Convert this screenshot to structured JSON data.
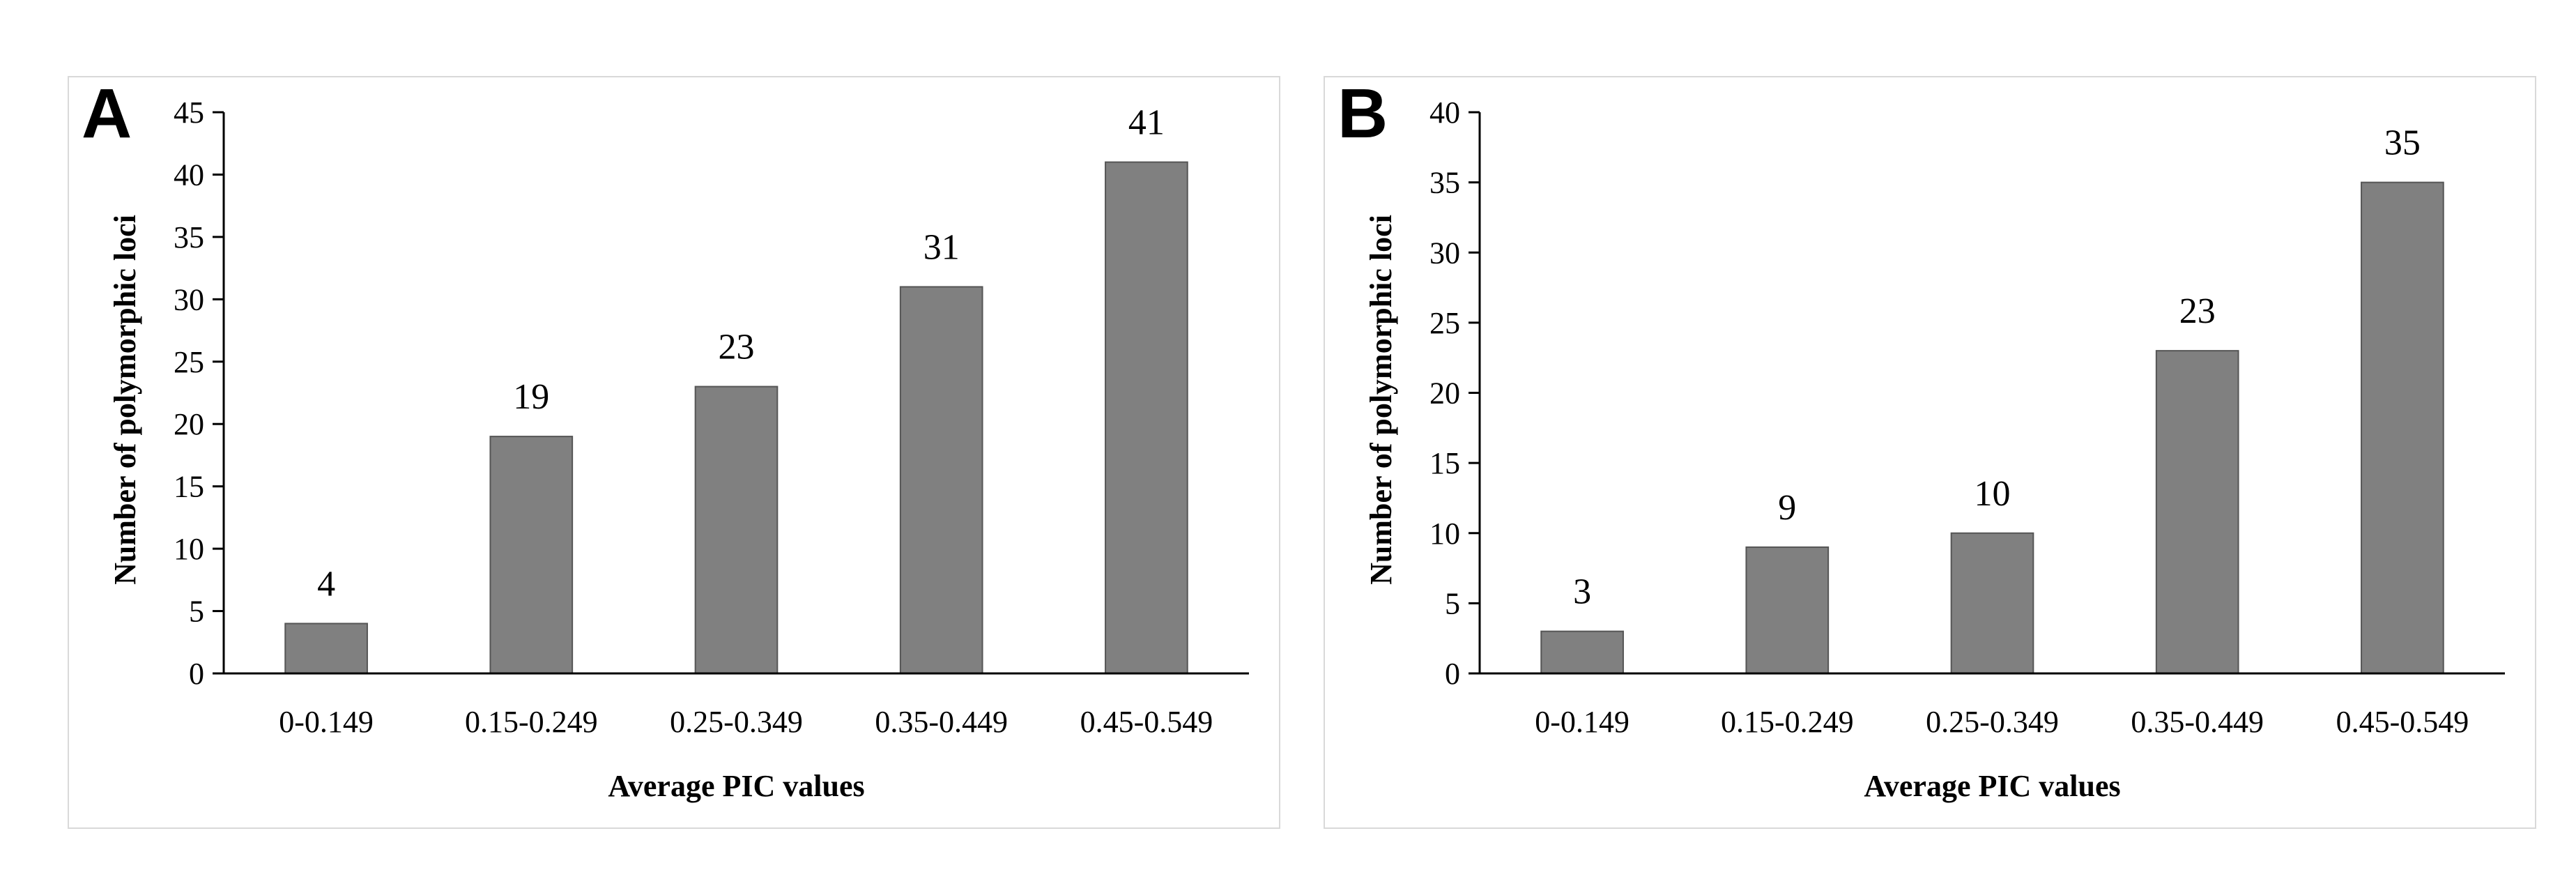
{
  "chart_data": [
    {
      "type": "bar",
      "panel_label": "A",
      "categories": [
        "0-0.149",
        "0.15-0.249",
        "0.25-0.349",
        "0.35-0.449",
        "0.45-0.549"
      ],
      "values": [
        4,
        19,
        23,
        31,
        41
      ],
      "data_labels": [
        "4",
        "19",
        "23",
        "31",
        "41"
      ],
      "xlabel": "Average PIC values",
      "ylabel": "Number of polymorphic loci",
      "ylim": [
        0,
        45
      ],
      "yticks": [
        "0",
        "5",
        "10",
        "15",
        "20",
        "25",
        "30",
        "35",
        "40",
        "45"
      ],
      "grid": false,
      "legend": "none",
      "bar_color": "#808080"
    },
    {
      "type": "bar",
      "panel_label": "B",
      "categories": [
        "0-0.149",
        "0.15-0.249",
        "0.25-0.349",
        "0.35-0.449",
        "0.45-0.549"
      ],
      "values": [
        3,
        9,
        10,
        23,
        35
      ],
      "data_labels": [
        "3",
        "9",
        "10",
        "23",
        "35"
      ],
      "xlabel": "Average PIC values",
      "ylabel": "Number of polymorphic loci",
      "ylim": [
        0,
        40
      ],
      "yticks": [
        "0",
        "5",
        "10",
        "15",
        "20",
        "25",
        "30",
        "35",
        "40"
      ],
      "grid": false,
      "legend": "none",
      "bar_color": "#808080"
    }
  ]
}
